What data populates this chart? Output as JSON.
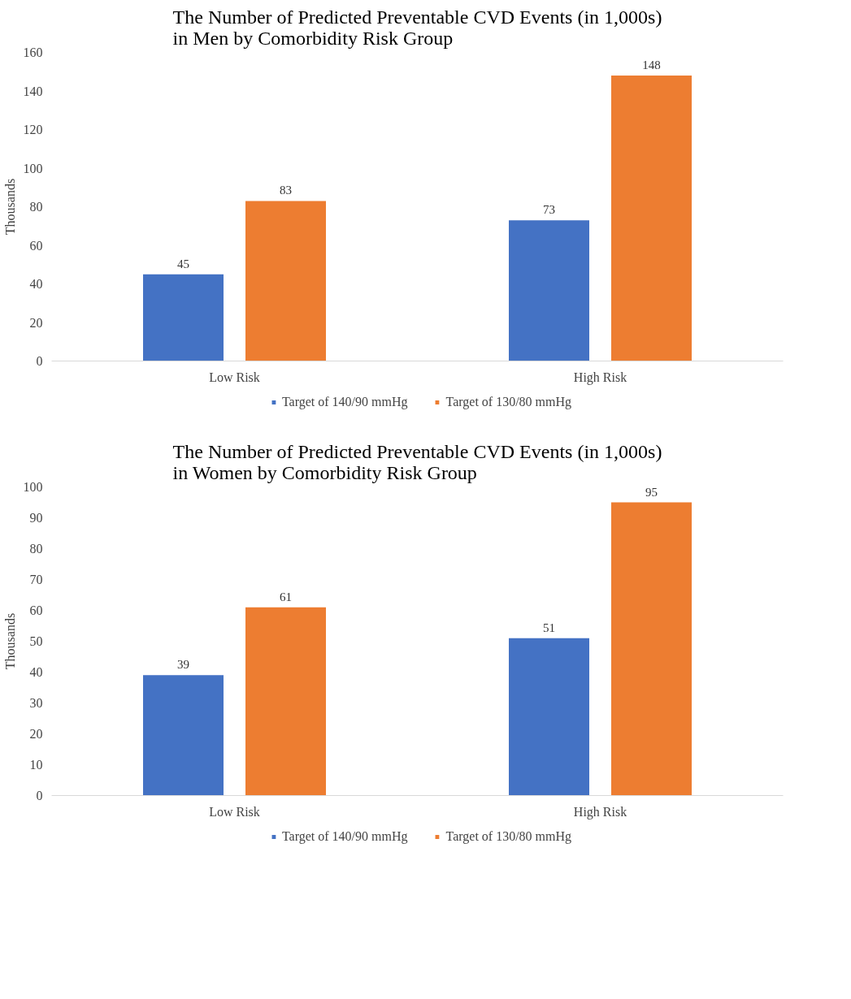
{
  "chart_data": [
    {
      "type": "bar",
      "title": "The Number of Predicted Preventable CVD Events (in 1,000s)\nin Men by Comorbidity Risk Group",
      "ylabel": "Thousands",
      "categories": [
        "Low Risk",
        "High Risk"
      ],
      "series": [
        {
          "name": "Target of 140/90 mmHg",
          "color": "#4472c4",
          "values": [
            45,
            73
          ]
        },
        {
          "name": "Target of 130/80 mmHg",
          "color": "#ed7d31",
          "values": [
            83,
            148
          ]
        }
      ],
      "ylim": [
        0,
        160
      ],
      "yticks": [
        0,
        20,
        40,
        60,
        80,
        100,
        120,
        140,
        160
      ],
      "data_labels": true,
      "legend": "bottom",
      "grid": false
    },
    {
      "type": "bar",
      "title": "The Number of Predicted Preventable CVD Events (in 1,000s)\nin Women by Comorbidity Risk Group",
      "ylabel": "Thousands",
      "categories": [
        "Low Risk",
        "High Risk"
      ],
      "series": [
        {
          "name": "Target of 140/90 mmHg",
          "color": "#4472c4",
          "values": [
            39,
            51
          ]
        },
        {
          "name": "Target of 130/80 mmHg",
          "color": "#ed7d31",
          "values": [
            61,
            95
          ]
        }
      ],
      "ylim": [
        0,
        100
      ],
      "yticks": [
        0,
        10,
        20,
        30,
        40,
        50,
        60,
        70,
        80,
        90,
        100
      ],
      "data_labels": true,
      "legend": "bottom",
      "grid": false
    }
  ]
}
